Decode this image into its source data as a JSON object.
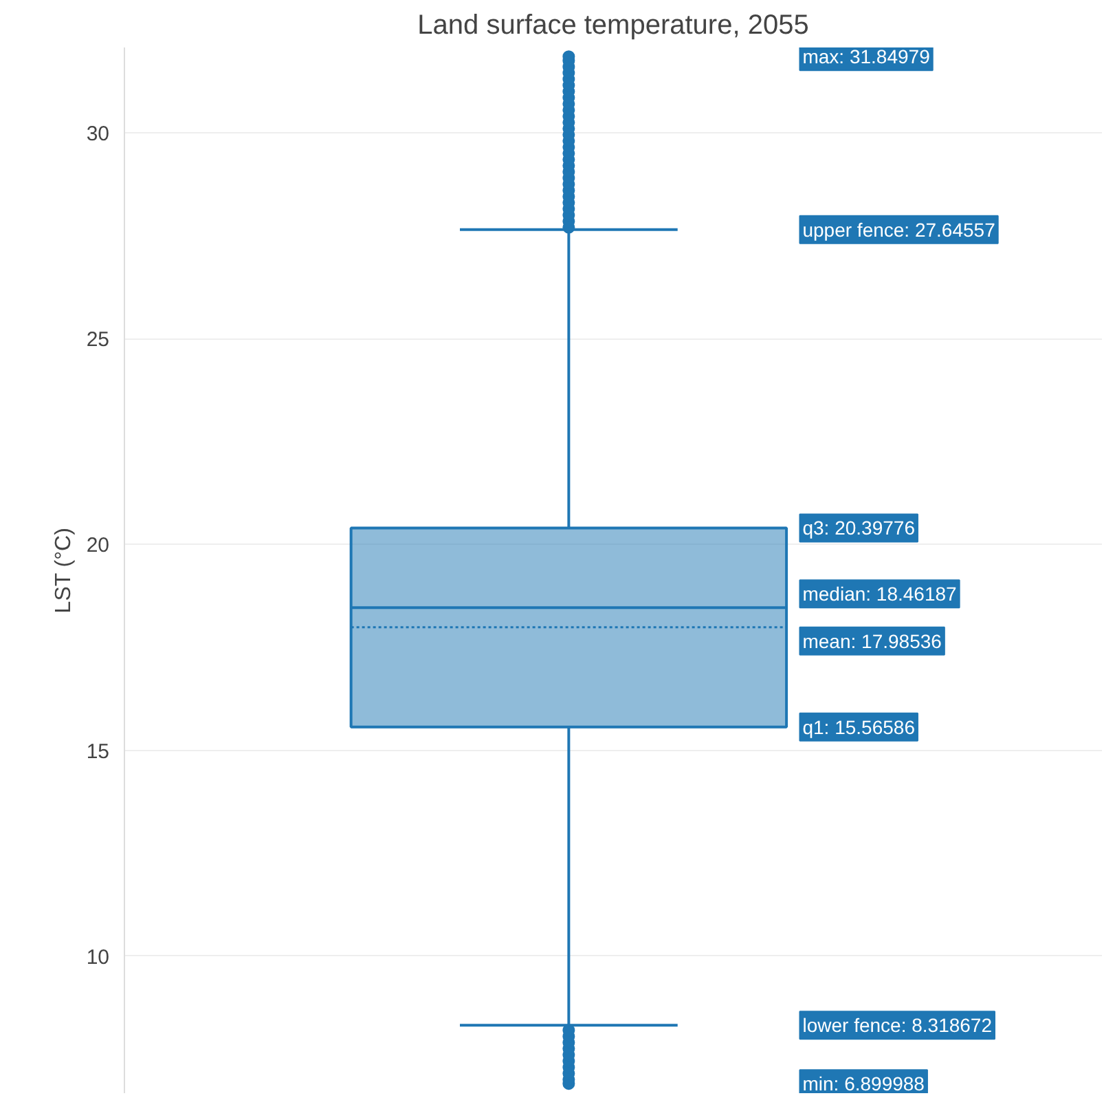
{
  "chart_data": {
    "type": "box",
    "title": "Land surface temperature, 2055",
    "ylabel": "LST (°C)",
    "categories": [
      null
    ],
    "series": [
      {
        "color": "#1f77b4",
        "boxes": [
          {
            "low": 8.318672,
            "q1": 15.56586,
            "median": 18.46187,
            "q3": 20.39776,
            "high": 27.64557,
            "mean": 17.98536,
            "outliers": [
              27.7,
              27.85,
              28.0,
              28.15,
              28.3,
              28.45,
              28.6,
              28.75,
              28.9,
              29.05,
              29.2,
              29.35,
              29.5,
              29.65,
              29.8,
              29.95,
              30.1,
              30.25,
              30.4,
              30.55,
              30.7,
              30.85,
              31.0,
              31.15,
              31.3,
              31.45,
              31.6,
              31.75,
              31.84979,
              6.899988,
              7.0,
              7.15,
              7.3,
              7.45,
              7.6,
              7.75,
              7.9,
              8.05,
              8.2
            ]
          }
        ]
      }
    ],
    "ylim": [
      6.67,
      32.07
    ],
    "yticks": [
      10,
      15,
      20,
      25,
      30
    ],
    "grid": "y",
    "tick_labels": "y",
    "annotations": [
      "max: 31.84979",
      "upper fence: 27.64557",
      "q3: 20.39776",
      "median: 18.46187",
      "mean: 17.98536",
      "q1: 15.56586",
      "lower fence: 8.318672",
      "min: 6.899988"
    ]
  }
}
